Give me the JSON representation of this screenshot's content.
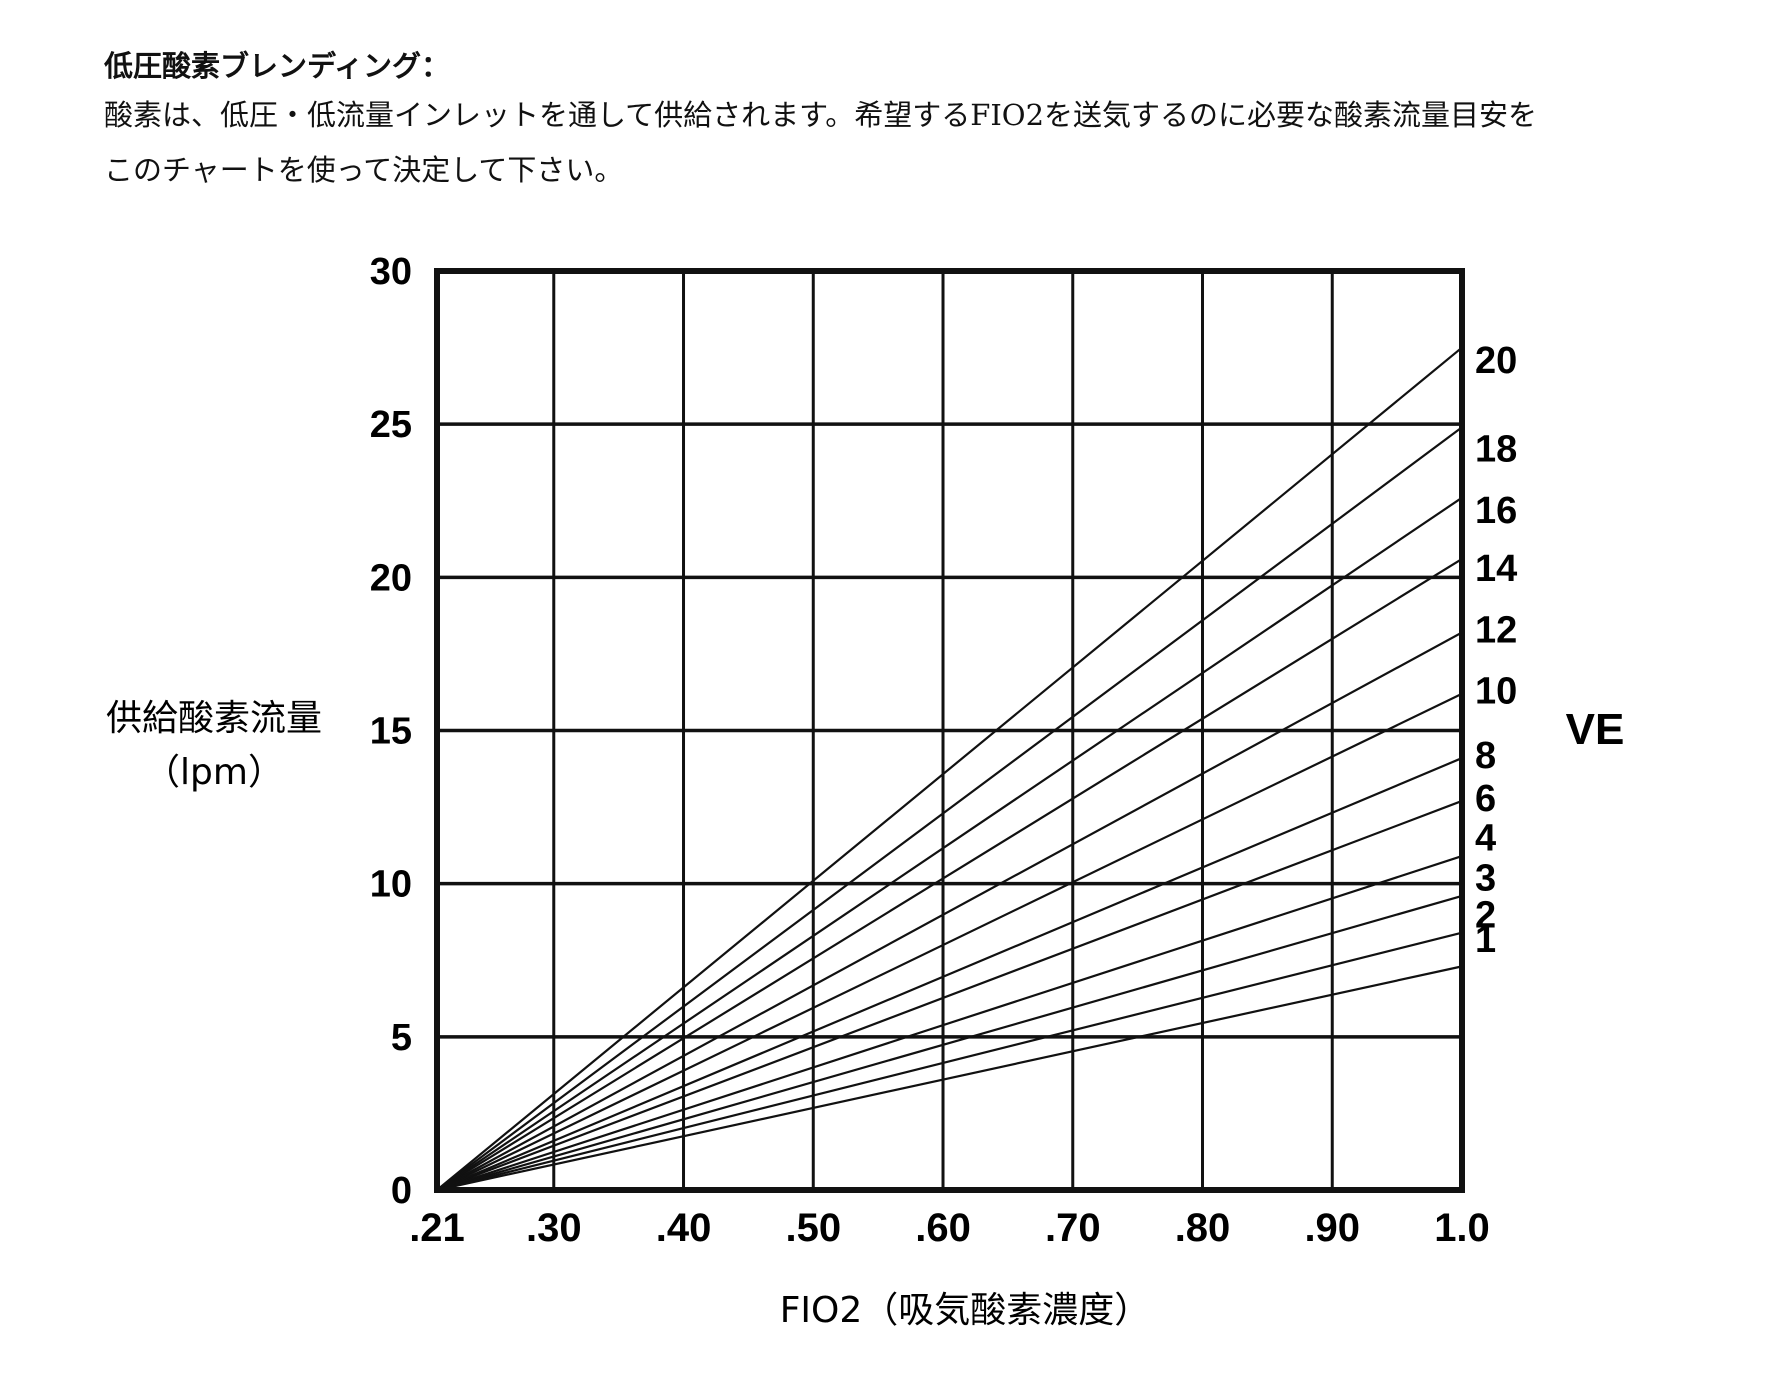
{
  "intro": {
    "title": "低圧酸素ブレンディング：",
    "line1": "酸素は、低圧・低流量インレットを通して供給されます。希望するFIO2を送気するのに必要な酸素流量目安を",
    "line2": "このチャートを使って決定して下さい。"
  },
  "chart_data": {
    "type": "line",
    "title": "",
    "xlabel": "FIO2（吸気酸素濃度）",
    "ylabel_line1": "供給酸素流量",
    "ylabel_line2": "（lpm）",
    "xlim": [
      0.21,
      1.0
    ],
    "ylim": [
      0,
      30
    ],
    "x_ticks": [
      {
        "value": 0.21,
        "label": ".21"
      },
      {
        "value": 0.3,
        "label": ".30"
      },
      {
        "value": 0.4,
        "label": ".40"
      },
      {
        "value": 0.5,
        "label": ".50"
      },
      {
        "value": 0.6,
        "label": ".60"
      },
      {
        "value": 0.7,
        "label": ".70"
      },
      {
        "value": 0.8,
        "label": ".80"
      },
      {
        "value": 0.9,
        "label": ".90"
      },
      {
        "value": 1.0,
        "label": "1.0"
      }
    ],
    "y_ticks": [
      0,
      5,
      10,
      15,
      20,
      25,
      30
    ],
    "grid": true,
    "series_axis_title": "VE",
    "series": [
      {
        "name": "1",
        "x": [
          0.21,
          1.0
        ],
        "y": [
          0,
          7.3
        ]
      },
      {
        "name": "2",
        "x": [
          0.21,
          1.0
        ],
        "y": [
          0,
          8.4
        ]
      },
      {
        "name": "3",
        "x": [
          0.21,
          1.0
        ],
        "y": [
          0,
          9.6
        ]
      },
      {
        "name": "4",
        "x": [
          0.21,
          1.0
        ],
        "y": [
          0,
          10.9
        ]
      },
      {
        "name": "6",
        "x": [
          0.21,
          1.0
        ],
        "y": [
          0,
          12.7
        ]
      },
      {
        "name": "8",
        "x": [
          0.21,
          1.0
        ],
        "y": [
          0,
          14.1
        ]
      },
      {
        "name": "10",
        "x": [
          0.21,
          1.0
        ],
        "y": [
          0,
          16.2
        ]
      },
      {
        "name": "12",
        "x": [
          0.21,
          1.0
        ],
        "y": [
          0,
          18.2
        ]
      },
      {
        "name": "14",
        "x": [
          0.21,
          1.0
        ],
        "y": [
          0,
          20.6
        ]
      },
      {
        "name": "16",
        "x": [
          0.21,
          1.0
        ],
        "y": [
          0,
          22.6
        ]
      },
      {
        "name": "18",
        "x": [
          0.21,
          1.0
        ],
        "y": [
          0,
          24.9
        ]
      },
      {
        "name": "20",
        "x": [
          0.21,
          1.0
        ],
        "y": [
          0,
          27.5
        ]
      }
    ],
    "series_label_y": [
      8.2,
      9.0,
      10.2,
      11.5,
      12.8,
      14.2,
      16.3,
      18.3,
      20.3,
      22.2,
      24.2,
      27.1
    ]
  }
}
